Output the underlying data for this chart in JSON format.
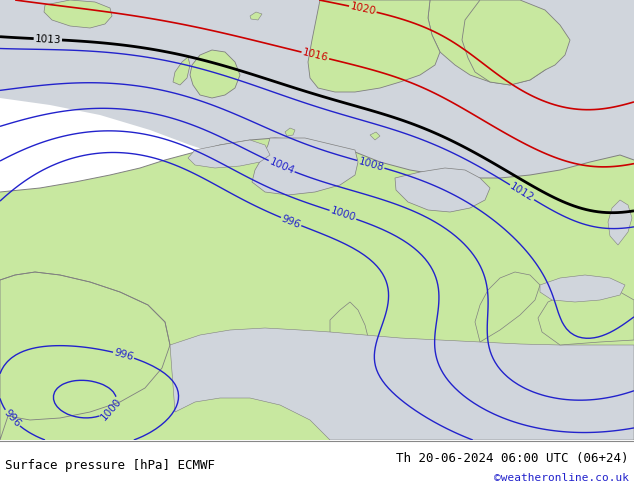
{
  "title_left": "Surface pressure [hPa] ECMWF",
  "title_right": "Th 20-06-2024 06:00 UTC (06+24)",
  "copyright": "©weatheronline.co.uk",
  "land_color": "#c8e8a0",
  "sea_color": "#d0d5dc",
  "text_color_blue": "#2222cc",
  "text_color_black": "#000000",
  "text_color_red": "#cc0000",
  "figsize": [
    6.34,
    4.9
  ],
  "dpi": 100
}
